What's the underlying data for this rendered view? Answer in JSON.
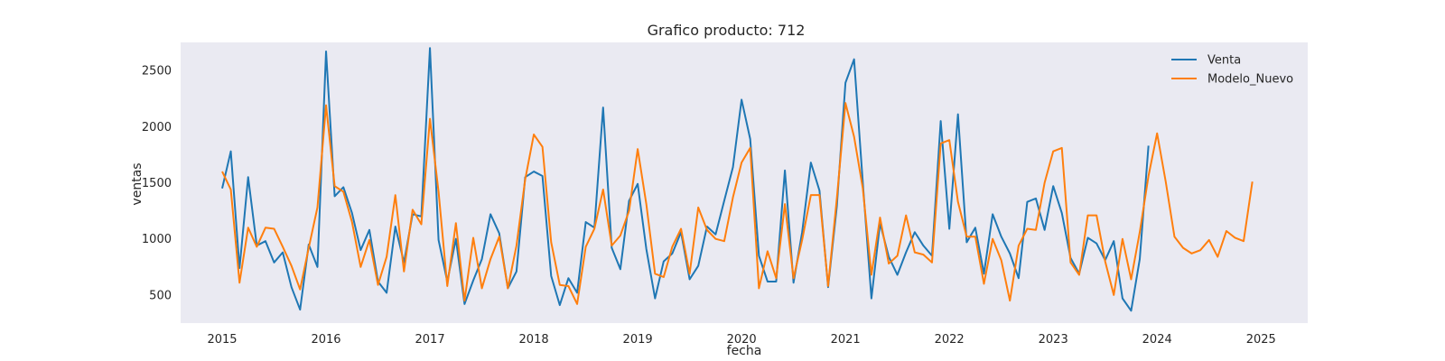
{
  "chart_data": {
    "type": "line",
    "title": "Grafico producto: 712",
    "xlabel": "fecha",
    "ylabel": "ventas",
    "xlim": [
      2014.6,
      2025.45
    ],
    "ylim": [
      250,
      2750
    ],
    "x_ticks": [
      2015,
      2016,
      2017,
      2018,
      2019,
      2020,
      2021,
      2022,
      2023,
      2024,
      2025
    ],
    "y_ticks": [
      500,
      1000,
      1500,
      2000,
      2500
    ],
    "grid": false,
    "background": "#eaeaf2",
    "legend_position": "top-right",
    "series": [
      {
        "name": "Venta",
        "color": "#1f77b4",
        "x": [
          2015.0,
          2015.083,
          2015.167,
          2015.25,
          2015.333,
          2015.417,
          2015.5,
          2015.583,
          2015.667,
          2015.75,
          2015.833,
          2015.917,
          2016.0,
          2016.083,
          2016.167,
          2016.25,
          2016.333,
          2016.417,
          2016.5,
          2016.583,
          2016.667,
          2016.75,
          2016.833,
          2016.917,
          2017.0,
          2017.083,
          2017.167,
          2017.25,
          2017.333,
          2017.417,
          2017.5,
          2017.583,
          2017.667,
          2017.75,
          2017.833,
          2017.917,
          2018.0,
          2018.083,
          2018.167,
          2018.25,
          2018.333,
          2018.417,
          2018.5,
          2018.583,
          2018.667,
          2018.75,
          2018.833,
          2018.917,
          2019.0,
          2019.083,
          2019.167,
          2019.25,
          2019.333,
          2019.417,
          2019.5,
          2019.583,
          2019.667,
          2019.75,
          2019.833,
          2019.917,
          2020.0,
          2020.083,
          2020.167,
          2020.25,
          2020.333,
          2020.417,
          2020.5,
          2020.583,
          2020.667,
          2020.75,
          2020.833,
          2020.917,
          2021.0,
          2021.083,
          2021.167,
          2021.25,
          2021.333,
          2021.417,
          2021.5,
          2021.583,
          2021.667,
          2021.75,
          2021.833,
          2021.917,
          2022.0,
          2022.083,
          2022.167,
          2022.25,
          2022.333,
          2022.417,
          2022.5,
          2022.583,
          2022.667,
          2022.75,
          2022.833,
          2022.917,
          2023.0,
          2023.083,
          2023.167,
          2023.25,
          2023.333,
          2023.417,
          2023.5,
          2023.583,
          2023.667,
          2023.75,
          2023.833,
          2023.917
        ],
        "values": [
          1450,
          1780,
          740,
          1550,
          940,
          980,
          790,
          880,
          570,
          370,
          950,
          750,
          2670,
          1380,
          1460,
          1230,
          900,
          1080,
          620,
          520,
          1110,
          790,
          1220,
          1200,
          2700,
          990,
          620,
          1000,
          420,
          630,
          820,
          1220,
          1050,
          560,
          710,
          1550,
          1600,
          1560,
          670,
          410,
          650,
          520,
          1150,
          1100,
          2170,
          920,
          730,
          1340,
          1490,
          910,
          470,
          800,
          870,
          1060,
          640,
          760,
          1110,
          1040,
          1340,
          1640,
          2240,
          1890,
          850,
          620,
          620,
          1610,
          610,
          1060,
          1680,
          1430,
          570,
          1290,
          2390,
          2600,
          1500,
          470,
          1140,
          840,
          680,
          880,
          1060,
          940,
          850,
          2050,
          1090,
          2110,
          970,
          1100,
          690,
          1220,
          1020,
          870,
          650,
          1330,
          1360,
          1080,
          1470,
          1230,
          830,
          690,
          1010,
          960,
          810,
          980,
          470,
          360,
          820,
          1830
        ]
      },
      {
        "name": "Modelo_Nuevo",
        "color": "#ff7f0e",
        "x": [
          2015.0,
          2015.083,
          2015.167,
          2015.25,
          2015.333,
          2015.417,
          2015.5,
          2015.583,
          2015.667,
          2015.75,
          2015.833,
          2015.917,
          2016.0,
          2016.083,
          2016.167,
          2016.25,
          2016.333,
          2016.417,
          2016.5,
          2016.583,
          2016.667,
          2016.75,
          2016.833,
          2016.917,
          2017.0,
          2017.083,
          2017.167,
          2017.25,
          2017.333,
          2017.417,
          2017.5,
          2017.583,
          2017.667,
          2017.75,
          2017.833,
          2017.917,
          2018.0,
          2018.083,
          2018.167,
          2018.25,
          2018.333,
          2018.417,
          2018.5,
          2018.583,
          2018.667,
          2018.75,
          2018.833,
          2018.917,
          2019.0,
          2019.083,
          2019.167,
          2019.25,
          2019.333,
          2019.417,
          2019.5,
          2019.583,
          2019.667,
          2019.75,
          2019.833,
          2019.917,
          2020.0,
          2020.083,
          2020.167,
          2020.25,
          2020.333,
          2020.417,
          2020.5,
          2020.583,
          2020.667,
          2020.75,
          2020.833,
          2020.917,
          2021.0,
          2021.083,
          2021.167,
          2021.25,
          2021.333,
          2021.417,
          2021.5,
          2021.583,
          2021.667,
          2021.75,
          2021.833,
          2021.917,
          2022.0,
          2022.083,
          2022.167,
          2022.25,
          2022.333,
          2022.417,
          2022.5,
          2022.583,
          2022.667,
          2022.75,
          2022.833,
          2022.917,
          2023.0,
          2023.083,
          2023.167,
          2023.25,
          2023.333,
          2023.417,
          2023.5,
          2023.583,
          2023.667,
          2023.75,
          2023.833,
          2023.917,
          2024.0,
          2024.083,
          2024.167,
          2024.25,
          2024.333,
          2024.417,
          2024.5,
          2024.583,
          2024.667,
          2024.75,
          2024.833,
          2024.917
        ],
        "values": [
          1600,
          1440,
          610,
          1100,
          930,
          1100,
          1090,
          930,
          760,
          550,
          920,
          1280,
          2190,
          1470,
          1420,
          1150,
          750,
          990,
          590,
          840,
          1390,
          710,
          1260,
          1130,
          2070,
          1420,
          580,
          1140,
          450,
          1010,
          560,
          820,
          1020,
          560,
          940,
          1530,
          1930,
          1820,
          970,
          590,
          580,
          420,
          930,
          1090,
          1440,
          940,
          1030,
          1250,
          1800,
          1310,
          690,
          660,
          930,
          1090,
          690,
          1280,
          1080,
          1000,
          980,
          1370,
          1680,
          1810,
          560,
          890,
          650,
          1310,
          650,
          990,
          1390,
          1390,
          580,
          1360,
          2210,
          1910,
          1450,
          680,
          1190,
          780,
          850,
          1210,
          880,
          860,
          790,
          1850,
          1880,
          1330,
          1020,
          1020,
          600,
          1000,
          810,
          450,
          940,
          1090,
          1080,
          1500,
          1780,
          1810,
          790,
          680,
          1210,
          1210,
          800,
          500,
          1000,
          640,
          1060,
          1560,
          1940,
          1510,
          1020,
          920,
          870,
          900,
          990,
          840,
          1070,
          1010,
          980,
          1510
        ]
      }
    ]
  }
}
